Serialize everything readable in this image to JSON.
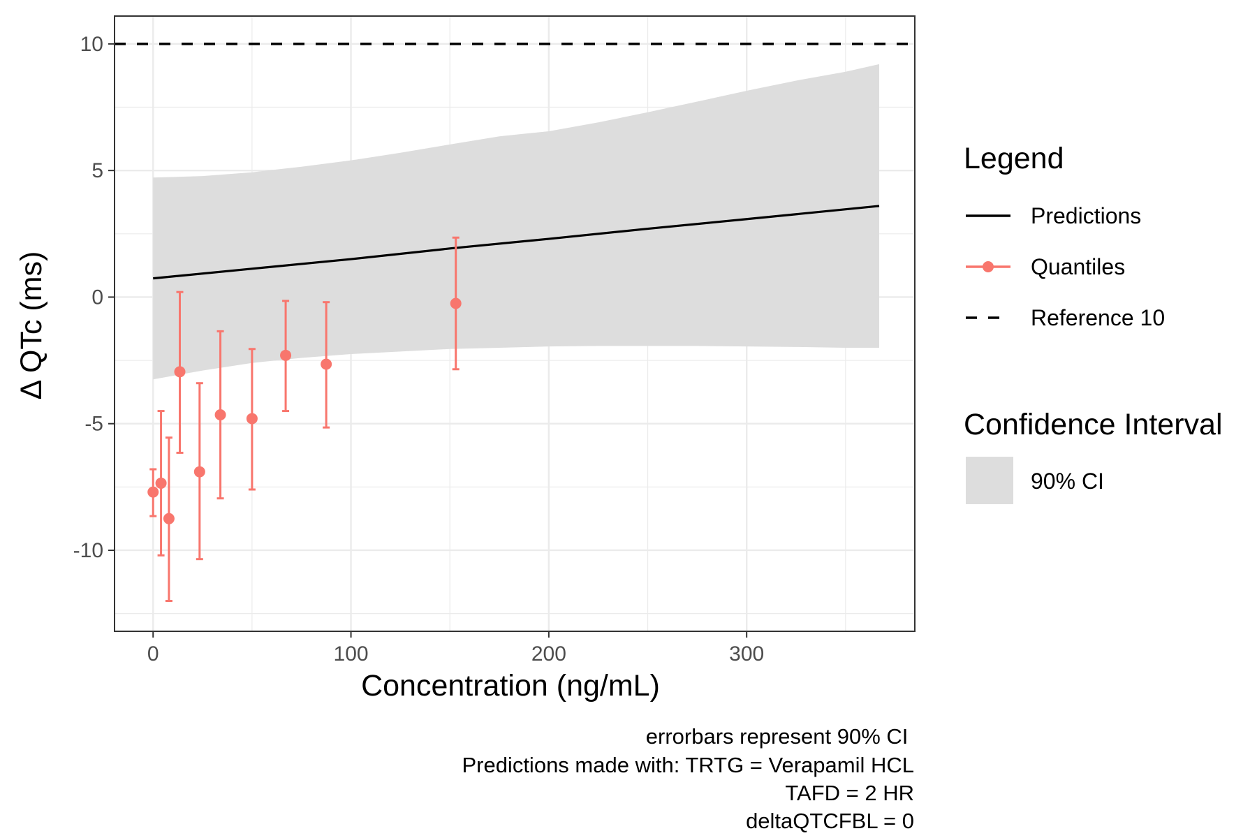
{
  "chart_data": {
    "type": "scatter",
    "xlabel": "Concentration (ng/mL)",
    "ylabel": "Δ QTc (ms)",
    "xlim": [
      -19.5,
      385
    ],
    "ylim": [
      -13.2,
      11.1
    ],
    "x_ticks": [
      0,
      100,
      200,
      300
    ],
    "y_ticks": [
      -10,
      -5,
      0,
      5,
      10
    ],
    "x_tick_labels": [
      "0",
      "100",
      "200",
      "300"
    ],
    "y_tick_labels": [
      "-10",
      "-5",
      "0",
      "5",
      "10"
    ],
    "grid": true,
    "legend_placement": "right",
    "colors": {
      "predictions": "#000000",
      "quantiles": "#f8766d",
      "ci_band": "#dddddd",
      "reference": "#000000",
      "grid": "#ebebeb",
      "panel_border": "#333333"
    },
    "series": [
      {
        "name": "Predictions",
        "kind": "line",
        "x": [
          0,
          50,
          100,
          150,
          200,
          250,
          300,
          367
        ],
        "y": [
          0.74,
          1.12,
          1.5,
          1.92,
          2.3,
          2.7,
          3.08,
          3.6
        ]
      },
      {
        "name": "90% CI",
        "kind": "band",
        "x": [
          0,
          25,
          50,
          75,
          100,
          125,
          150,
          175,
          200,
          225,
          250,
          275,
          300,
          325,
          350,
          367
        ],
        "lower": [
          -3.25,
          -2.9,
          -2.6,
          -2.4,
          -2.25,
          -2.15,
          -2.05,
          -2.0,
          -1.95,
          -1.93,
          -1.93,
          -1.93,
          -1.95,
          -1.97,
          -2.0,
          -2.0
        ],
        "upper": [
          4.72,
          4.78,
          4.93,
          5.15,
          5.4,
          5.7,
          6.03,
          6.35,
          6.55,
          6.9,
          7.3,
          7.72,
          8.15,
          8.55,
          8.9,
          9.2
        ]
      },
      {
        "name": "Quantiles",
        "kind": "points_errorbars",
        "x": [
          0,
          4,
          8,
          13.5,
          23.5,
          34,
          50,
          67,
          87.5,
          153
        ],
        "y": [
          -7.7,
          -7.35,
          -8.75,
          -2.95,
          -6.9,
          -4.65,
          -4.8,
          -2.3,
          -2.65,
          -0.25
        ],
        "ymin": [
          -8.65,
          -10.2,
          -12.0,
          -6.15,
          -10.35,
          -7.95,
          -7.6,
          -4.5,
          -5.15,
          -2.85
        ],
        "ymax": [
          -6.8,
          -4.5,
          -5.55,
          0.2,
          -3.4,
          -1.35,
          -2.05,
          -0.15,
          -0.2,
          2.35
        ]
      },
      {
        "name": "Reference 10",
        "kind": "hline",
        "y": 10
      }
    ],
    "legends": [
      {
        "title": "Legend",
        "items": [
          {
            "label": "Predictions",
            "key": "line"
          },
          {
            "label": "Quantiles",
            "key": "point-line"
          },
          {
            "label": "Reference 10",
            "key": "dashed"
          }
        ]
      },
      {
        "title": "Confidence Interval",
        "items": [
          {
            "label": "90% CI",
            "key": "fill"
          }
        ]
      }
    ],
    "caption": [
      "errorbars represent 90% CI ",
      "Predictions made with: TRTG = Verapamil HCL",
      "TAFD = 2 HR",
      "deltaQTCFBL = 0"
    ]
  }
}
